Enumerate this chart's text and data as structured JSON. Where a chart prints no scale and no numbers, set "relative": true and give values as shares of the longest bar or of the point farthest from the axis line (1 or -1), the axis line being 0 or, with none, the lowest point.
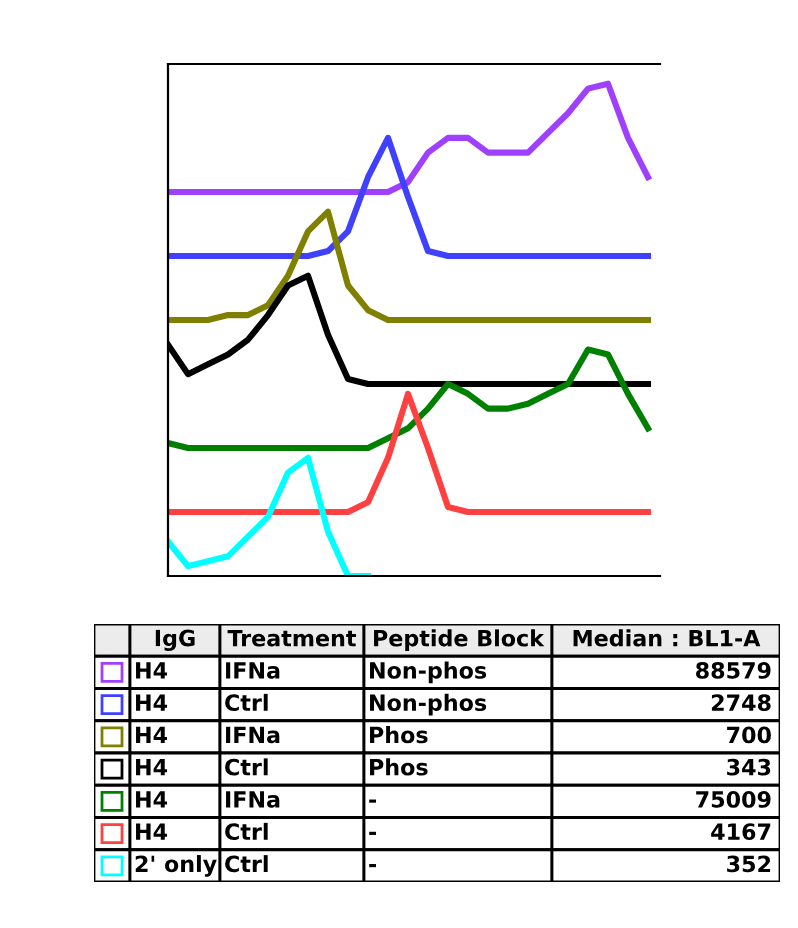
{
  "chart_data": {
    "type": "line",
    "relative": true,
    "grid": false,
    "legend": false,
    "marker": "none",
    "line_style": "solid",
    "categories": [
      null,
      null,
      null,
      null,
      null,
      null,
      null,
      null,
      null,
      null,
      null,
      null,
      null,
      null,
      null,
      null,
      null,
      null,
      null,
      null,
      null,
      null,
      null,
      null,
      null
    ],
    "series": [
      {
        "color": "#a040ff",
        "values": [
          0.78,
          0.78,
          0.78,
          0.78,
          0.78,
          0.78,
          0.78,
          0.78,
          0.78,
          0.78,
          0.78,
          0.78,
          0.8,
          0.86,
          0.89,
          0.89,
          0.86,
          0.86,
          0.86,
          0.9,
          0.94,
          0.99,
          1.0,
          0.89,
          0.81
        ]
      },
      {
        "color": "#4040ff",
        "values": [
          0.65,
          0.65,
          0.65,
          0.65,
          0.65,
          0.65,
          0.65,
          0.65,
          0.66,
          0.7,
          0.81,
          0.89,
          0.77,
          0.66,
          0.65,
          0.65,
          0.65,
          0.65,
          0.65,
          0.65,
          0.65,
          0.65,
          0.65,
          0.65,
          0.65
        ]
      },
      {
        "color": "#808000",
        "values": [
          0.52,
          0.52,
          0.52,
          0.53,
          0.53,
          0.55,
          0.61,
          0.7,
          0.74,
          0.59,
          0.54,
          0.52,
          0.52,
          0.52,
          0.52,
          0.52,
          0.52,
          0.52,
          0.52,
          0.52,
          0.52,
          0.52,
          0.52,
          0.52,
          0.52
        ]
      },
      {
        "color": "#000000",
        "values": [
          0.47,
          0.41,
          0.43,
          0.45,
          0.48,
          0.53,
          0.59,
          0.61,
          0.49,
          0.4,
          0.39,
          0.39,
          0.39,
          0.39,
          0.39,
          0.39,
          0.39,
          0.39,
          0.39,
          0.39,
          0.39,
          0.39,
          0.39,
          0.39,
          0.39
        ]
      },
      {
        "color": "#008000",
        "values": [
          0.27,
          0.26,
          0.26,
          0.26,
          0.26,
          0.26,
          0.26,
          0.26,
          0.26,
          0.26,
          0.26,
          0.28,
          0.3,
          0.34,
          0.39,
          0.37,
          0.34,
          0.34,
          0.35,
          0.37,
          0.39,
          0.46,
          0.45,
          0.37,
          0.3
        ]
      },
      {
        "color": "#ff4040",
        "values": [
          0.13,
          0.13,
          0.13,
          0.13,
          0.13,
          0.13,
          0.13,
          0.13,
          0.13,
          0.13,
          0.15,
          0.24,
          0.37,
          0.26,
          0.14,
          0.13,
          0.13,
          0.13,
          0.13,
          0.13,
          0.13,
          0.13,
          0.13,
          0.13,
          0.13
        ]
      },
      {
        "color": "#00ffff",
        "values": [
          0.07,
          0.02,
          0.03,
          0.04,
          0.08,
          0.12,
          0.21,
          0.24,
          0.09,
          0.0,
          0.0,
          null,
          null,
          null,
          null,
          null,
          null,
          null,
          null,
          null,
          null,
          null,
          null,
          null,
          null
        ]
      }
    ],
    "annotations": [
      "IgG",
      "Treatment",
      "Peptide Block",
      "Median : BL1-A",
      "H4",
      "IFNa",
      "Non-phos",
      "88579",
      "H4",
      "Ctrl",
      "Non-phos",
      "2748",
      "H4",
      "IFNa",
      "Phos",
      "700",
      "H4",
      "Ctrl",
      "Phos",
      "343",
      "H4",
      "IFNa",
      "-",
      "75009",
      "H4",
      "Ctrl",
      "-",
      "4167",
      "2' only",
      "Ctrl",
      "-",
      "352"
    ]
  }
}
